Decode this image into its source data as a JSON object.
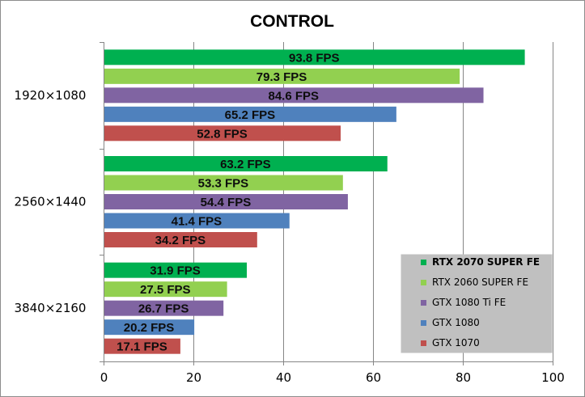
{
  "chart_data": {
    "type": "bar",
    "orientation": "horizontal",
    "title": "CONTROL",
    "categories": [
      "1920×1080",
      "2560×1440",
      "3840×2160"
    ],
    "series": [
      {
        "name": "RTX 2070 SUPER FE",
        "color": "#00b050",
        "values": [
          93.8,
          63.2,
          31.9
        ],
        "labels": [
          "93.8 FPS",
          "63.2 FPS",
          "31.9 FPS"
        ]
      },
      {
        "name": "RTX 2060 SUPER FE",
        "color": "#92d050",
        "values": [
          79.3,
          53.3,
          27.5
        ],
        "labels": [
          "79.3 FPS",
          "53.3 FPS",
          "27.5 FPS"
        ]
      },
      {
        "name": "GTX 1080 Ti FE",
        "color": "#8064a2",
        "values": [
          84.6,
          54.4,
          26.7
        ],
        "labels": [
          "84.6 FPS",
          "54.4 FPS",
          "26.7 FPS"
        ]
      },
      {
        "name": "GTX 1080",
        "color": "#4f81bd",
        "values": [
          65.2,
          41.4,
          20.2
        ],
        "labels": [
          "65.2 FPS",
          "41.4 FPS",
          "20.2 FPS"
        ]
      },
      {
        "name": "GTX 1070",
        "color": "#c0504d",
        "values": [
          52.8,
          34.2,
          17.1
        ],
        "labels": [
          "52.8 FPS",
          "34.2 FPS",
          "17.1 FPS"
        ]
      }
    ],
    "xlim": [
      0,
      100
    ],
    "xticks": [
      0,
      20,
      40,
      60,
      80,
      100
    ],
    "grid": true,
    "legend_position": "bottom-right"
  }
}
